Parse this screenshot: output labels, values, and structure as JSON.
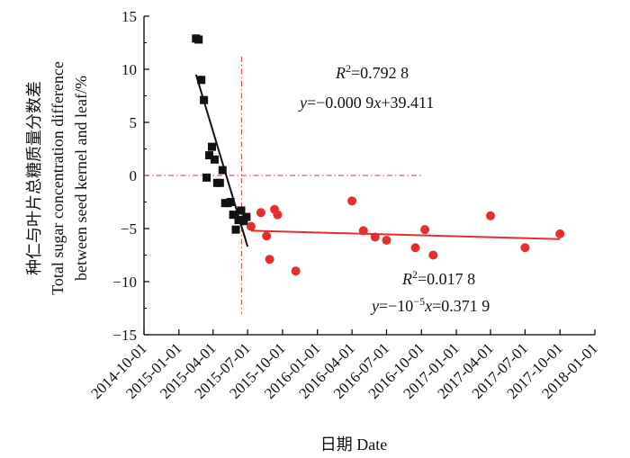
{
  "chart_data": {
    "type": "scatter",
    "title": "",
    "xlabel": "日期 Date",
    "ylabel_line1": "种仁与叶片总糖质量分数差",
    "ylabel_line2": "Total sugar concentration difference",
    "ylabel_line3": "between seed kernel and leaf/%",
    "ylim": [
      -15,
      15
    ],
    "y_ticks": [
      15,
      10,
      5,
      0,
      -5,
      -10,
      -15
    ],
    "x_ticks": [
      "2014-10-01",
      "2015-01-01",
      "2015-04-01",
      "2015-07-01",
      "2015-10-01",
      "2016-01-01",
      "2016-04-01",
      "2016-07-01",
      "2016-10-01",
      "2017-01-01",
      "2017-04-01",
      "2017-07-01",
      "2017-10-01",
      "2018-01-01"
    ],
    "grid": false,
    "legend": "none",
    "series": [
      {
        "name": "phase-1",
        "marker": "square",
        "color": "#111111",
        "x": [
          "2015-02-15",
          "2015-02-22",
          "2015-03-01",
          "2015-03-08",
          "2015-03-15",
          "2015-03-22",
          "2015-03-29",
          "2015-04-05",
          "2015-04-12",
          "2015-04-19",
          "2015-04-26",
          "2015-05-03",
          "2015-05-10",
          "2015-05-17",
          "2015-05-24",
          "2015-05-31",
          "2015-06-07",
          "2015-06-14",
          "2015-06-21",
          "2015-06-28"
        ],
        "y": [
          12.9,
          12.8,
          9.0,
          7.1,
          -0.2,
          1.9,
          2.7,
          1.5,
          -0.7,
          -0.7,
          0.5,
          -2.6,
          -2.6,
          -2.5,
          -3.7,
          -5.1,
          -4.2,
          -3.3,
          -4.3,
          -3.9
        ]
      },
      {
        "name": "phase-2",
        "marker": "circle",
        "color": "#e62e2e",
        "x": [
          "2015-07-10",
          "2015-08-05",
          "2015-08-20",
          "2015-08-28",
          "2015-09-10",
          "2015-09-18",
          "2015-11-05",
          "2016-04-01",
          "2016-05-01",
          "2016-06-01",
          "2016-07-01",
          "2016-09-15",
          "2016-10-10",
          "2016-11-01",
          "2017-04-01",
          "2017-07-01",
          "2017-10-01"
        ],
        "y": [
          -4.8,
          -3.5,
          -5.7,
          -7.9,
          -3.2,
          -3.7,
          -9.0,
          -2.4,
          -5.2,
          -5.8,
          -6.1,
          -6.8,
          -5.1,
          -7.5,
          -3.8,
          -6.8,
          -5.5
        ]
      }
    ],
    "fits": [
      {
        "name": "fit-1",
        "color": "#111111",
        "x": [
          "2015-02-15",
          "2015-07-01"
        ],
        "y": [
          9.5,
          -6.7
        ],
        "r2_label": "R",
        "r2_sup": "2",
        "r2_value": "=0.792 8",
        "eq_y": "y",
        "eq_mid": "=−0.000 9",
        "eq_x": "x",
        "eq_tail": "+39.411"
      },
      {
        "name": "fit-2",
        "color": "#e62e2e",
        "x": [
          "2015-07-10",
          "2017-10-01"
        ],
        "y": [
          -5.2,
          -6.0
        ],
        "r2_label": "R",
        "r2_sup": "2",
        "r2_value": "=0.017 8",
        "eq_y": "y",
        "eq_mid": "=−10",
        "eq_sup": "−5",
        "eq_x": "x",
        "eq_tail": "=0.371 9"
      }
    ],
    "ref_vertical_x": "2015-06-15",
    "ref_horizontal_y": 0,
    "ref_horizontal_to_x": "2016-10-01",
    "colors": {
      "black": "#111111",
      "red": "#e62e2e",
      "ref_red": "#d33"
    }
  }
}
